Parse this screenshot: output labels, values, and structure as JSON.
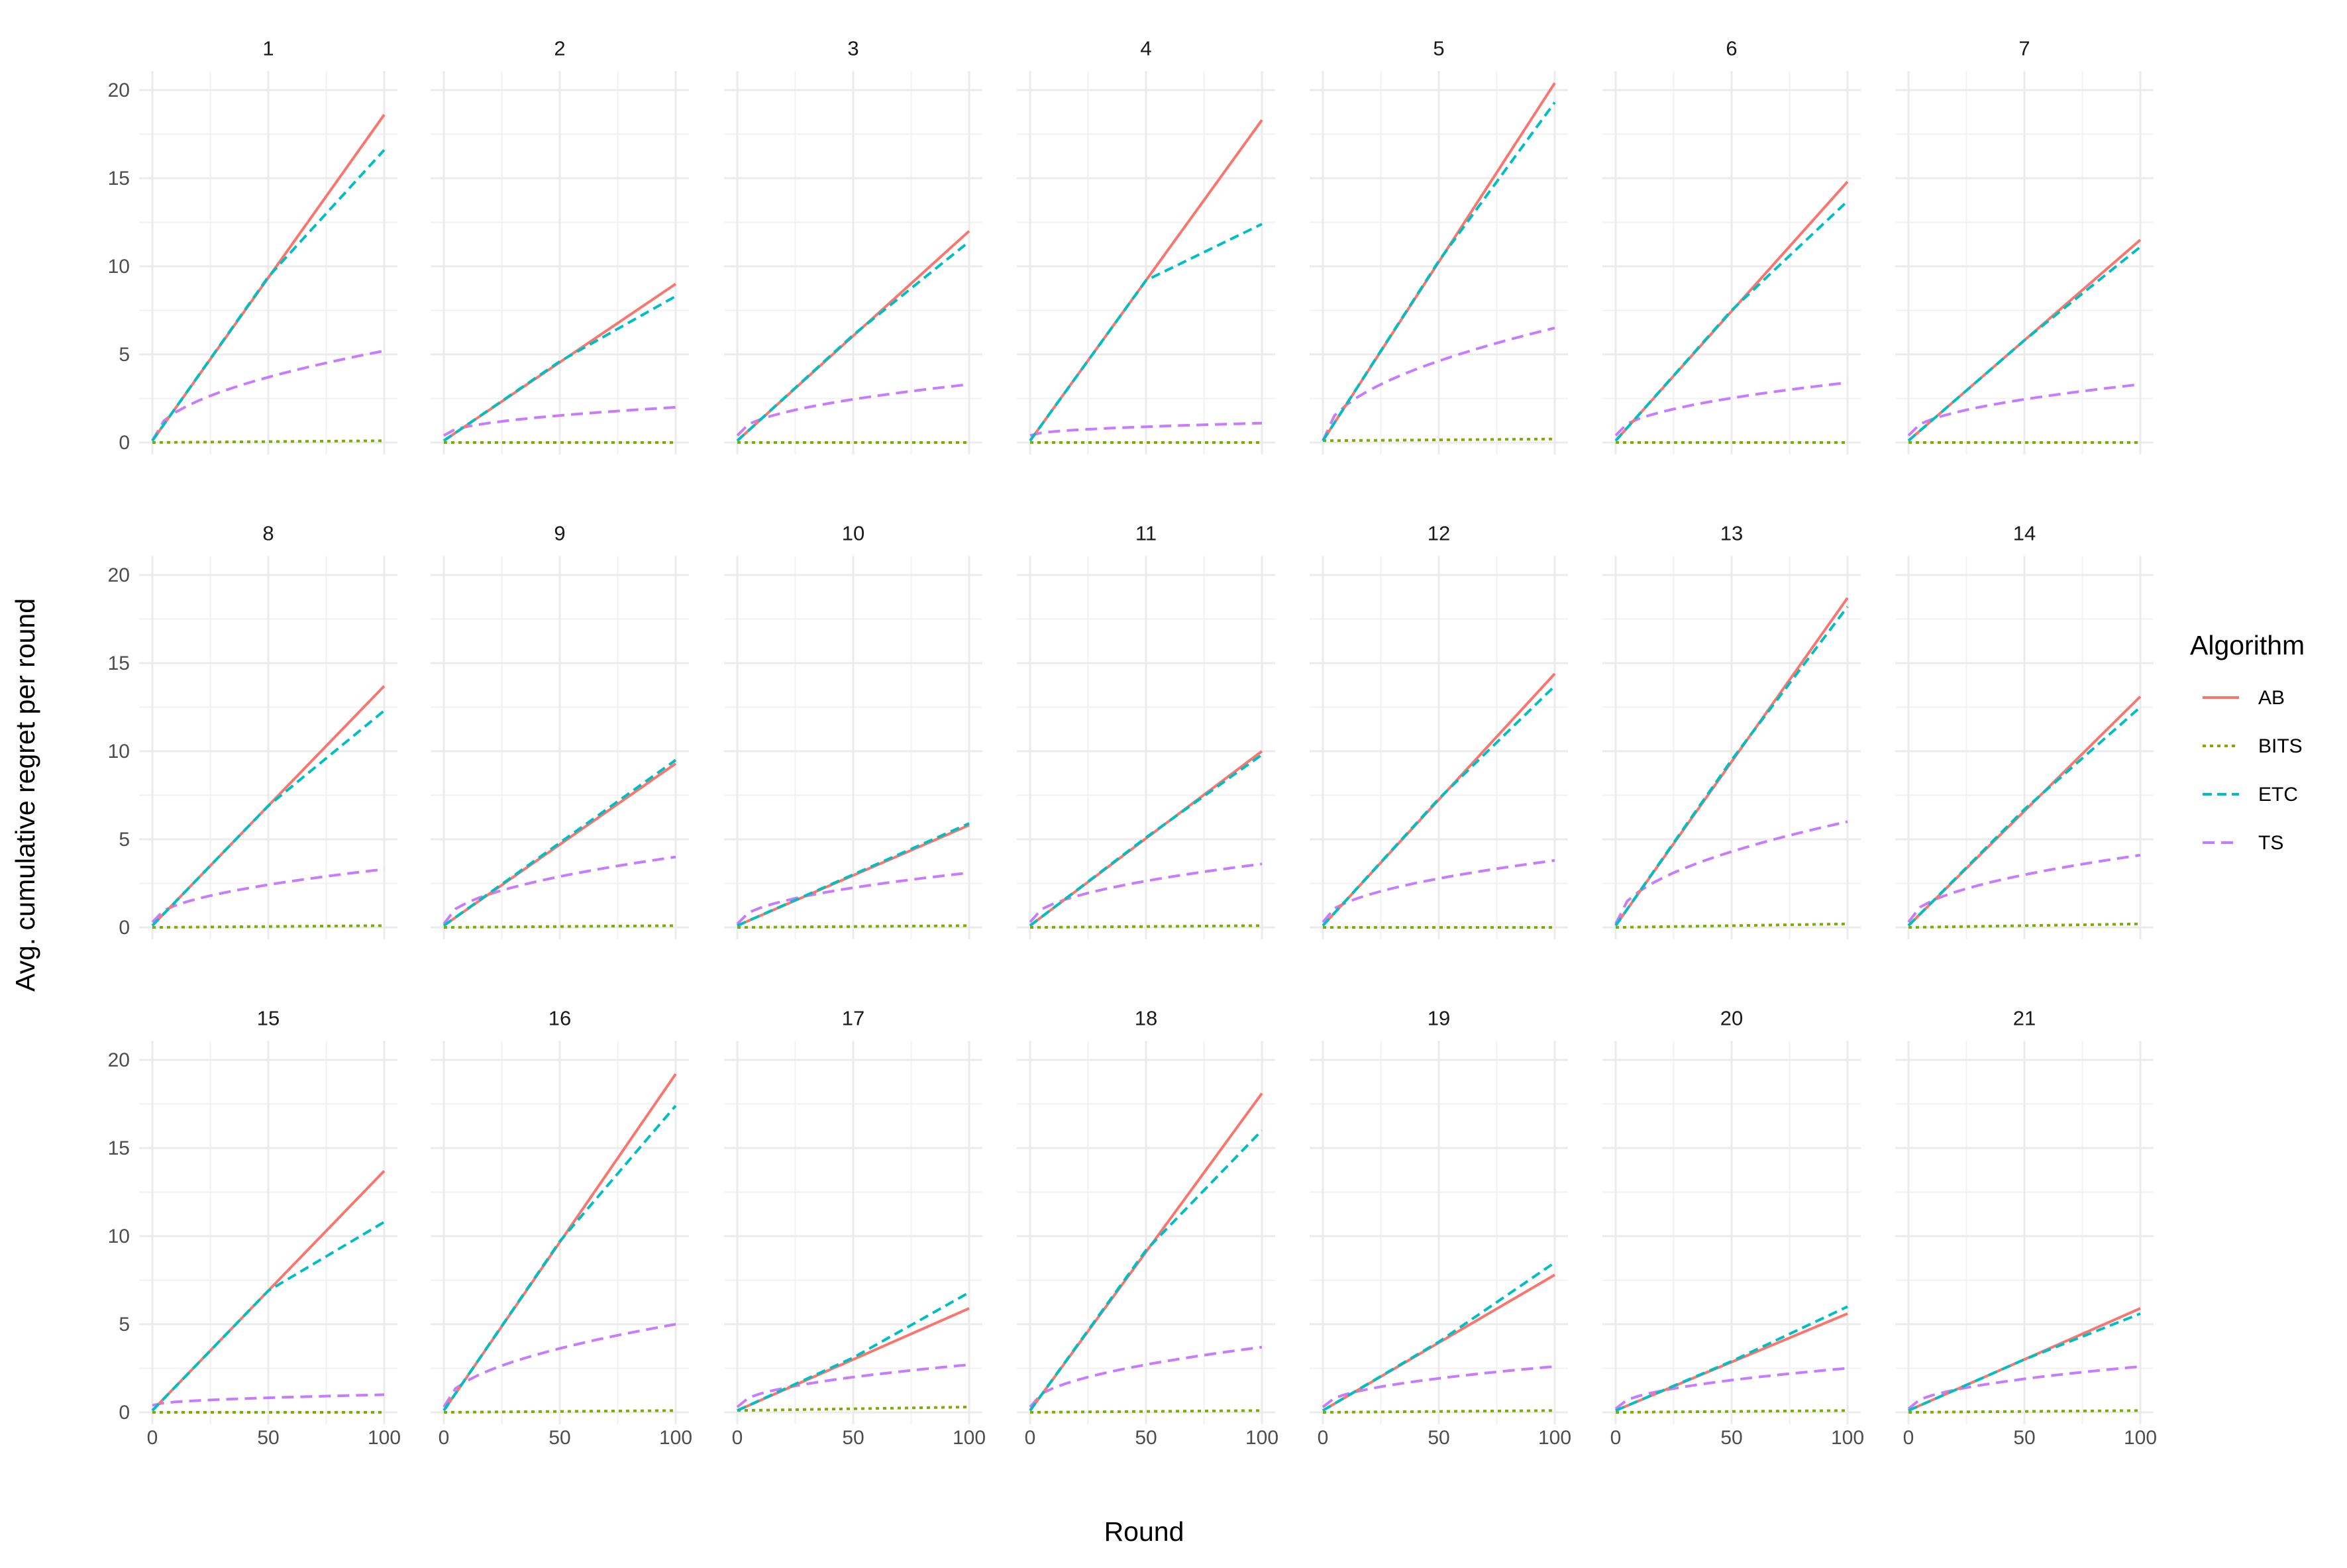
{
  "chart_data": {
    "type": "line",
    "facet_layout": "3 rows x 7 columns",
    "xlabel": "Round",
    "ylabel": "Avg. cumulative regret per round",
    "xlim": [
      0,
      100
    ],
    "ylim": [
      0,
      21
    ],
    "x_ticks": [
      0,
      50,
      100
    ],
    "y_ticks": [
      0,
      5,
      10,
      15,
      20
    ],
    "grid": true,
    "legend": {
      "title": "Algorithm",
      "placement": "right",
      "entries": [
        {
          "name": "AB",
          "color": "#F8766D",
          "dash": "solid"
        },
        {
          "name": "BITS",
          "color": "#7CAE00",
          "dash": "dotted"
        },
        {
          "name": "ETC",
          "color": "#00BFC4",
          "dash": "dashed"
        },
        {
          "name": "TS",
          "color": "#C77CFF",
          "dash": "longdash"
        }
      ]
    },
    "panel_series_note": "each panel: AB [y at x=0, x=100], BITS [x=0, x=100], ETC [x=0, x=50 switch, x=100], TS [x=0, x=100] on sqrt-like curve",
    "panels": [
      {
        "label": "1",
        "AB": [
          0.1,
          18.6
        ],
        "BITS": [
          0.0,
          0.1
        ],
        "ETC": [
          0.1,
          9.4,
          16.6
        ],
        "TS": [
          0.1,
          5.2
        ]
      },
      {
        "label": "2",
        "AB": [
          0.1,
          9.0
        ],
        "BITS": [
          0.0,
          0.0
        ],
        "ETC": [
          0.1,
          4.6,
          8.3
        ],
        "TS": [
          0.4,
          2.0
        ]
      },
      {
        "label": "3",
        "AB": [
          0.1,
          12.0
        ],
        "BITS": [
          0.0,
          0.0
        ],
        "ETC": [
          0.1,
          6.1,
          11.4
        ],
        "TS": [
          0.4,
          3.3
        ]
      },
      {
        "label": "4",
        "AB": [
          0.1,
          18.3
        ],
        "BITS": [
          0.0,
          0.0
        ],
        "ETC": [
          0.1,
          9.2,
          12.4
        ],
        "TS": [
          0.4,
          1.1
        ]
      },
      {
        "label": "5",
        "AB": [
          0.1,
          20.4
        ],
        "BITS": [
          0.1,
          0.2
        ],
        "ETC": [
          0.1,
          10.3,
          19.3
        ],
        "TS": [
          0.1,
          6.5
        ]
      },
      {
        "label": "6",
        "AB": [
          0.1,
          14.8
        ],
        "BITS": [
          0.0,
          0.0
        ],
        "ETC": [
          0.1,
          7.5,
          13.7
        ],
        "TS": [
          0.4,
          3.4
        ]
      },
      {
        "label": "7",
        "AB": [
          0.1,
          11.5
        ],
        "BITS": [
          0.0,
          0.0
        ],
        "ETC": [
          0.1,
          5.8,
          11.1
        ],
        "TS": [
          0.4,
          3.3
        ]
      },
      {
        "label": "8",
        "AB": [
          0.1,
          13.7
        ],
        "BITS": [
          0.0,
          0.1
        ],
        "ETC": [
          0.1,
          6.9,
          12.3
        ],
        "TS": [
          0.3,
          3.3
        ]
      },
      {
        "label": "9",
        "AB": [
          0.1,
          9.3
        ],
        "BITS": [
          0.0,
          0.1
        ],
        "ETC": [
          0.1,
          4.8,
          9.5
        ],
        "TS": [
          0.2,
          4.0
        ]
      },
      {
        "label": "10",
        "AB": [
          0.1,
          5.8
        ],
        "BITS": [
          0.0,
          0.1
        ],
        "ETC": [
          0.1,
          3.0,
          5.9
        ],
        "TS": [
          0.2,
          3.1
        ]
      },
      {
        "label": "11",
        "AB": [
          0.1,
          10.0
        ],
        "BITS": [
          0.0,
          0.1
        ],
        "ETC": [
          0.1,
          5.1,
          9.8
        ],
        "TS": [
          0.3,
          3.6
        ]
      },
      {
        "label": "12",
        "AB": [
          0.1,
          14.4
        ],
        "BITS": [
          0.0,
          0.0
        ],
        "ETC": [
          0.1,
          7.3,
          13.7
        ],
        "TS": [
          0.3,
          3.8
        ]
      },
      {
        "label": "13",
        "AB": [
          0.1,
          18.7
        ],
        "BITS": [
          0.0,
          0.2
        ],
        "ETC": [
          0.1,
          9.5,
          18.2
        ],
        "TS": [
          0.2,
          6.0
        ]
      },
      {
        "label": "14",
        "AB": [
          0.1,
          13.1
        ],
        "BITS": [
          0.0,
          0.2
        ],
        "ETC": [
          0.1,
          6.7,
          12.5
        ],
        "TS": [
          0.3,
          4.1
        ]
      },
      {
        "label": "15",
        "AB": [
          0.1,
          13.7
        ],
        "BITS": [
          0.0,
          0.0
        ],
        "ETC": [
          0.1,
          6.9,
          10.8
        ],
        "TS": [
          0.4,
          1.0
        ]
      },
      {
        "label": "16",
        "AB": [
          0.1,
          19.2
        ],
        "BITS": [
          0.0,
          0.1
        ],
        "ETC": [
          0.1,
          9.7,
          17.4
        ],
        "TS": [
          0.3,
          5.0
        ]
      },
      {
        "label": "17",
        "AB": [
          0.1,
          5.9
        ],
        "BITS": [
          0.1,
          0.3
        ],
        "ETC": [
          0.1,
          3.1,
          6.8
        ],
        "TS": [
          0.3,
          2.7
        ]
      },
      {
        "label": "18",
        "AB": [
          0.1,
          18.1
        ],
        "BITS": [
          0.0,
          0.1
        ],
        "ETC": [
          0.1,
          9.2,
          16.0
        ],
        "TS": [
          0.3,
          3.7
        ]
      },
      {
        "label": "19",
        "AB": [
          0.1,
          7.8
        ],
        "BITS": [
          0.0,
          0.1
        ],
        "ETC": [
          0.1,
          4.0,
          8.5
        ],
        "TS": [
          0.3,
          2.6
        ]
      },
      {
        "label": "20",
        "AB": [
          0.1,
          5.6
        ],
        "BITS": [
          0.0,
          0.1
        ],
        "ETC": [
          0.1,
          2.9,
          6.0
        ],
        "TS": [
          0.2,
          2.5
        ]
      },
      {
        "label": "21",
        "AB": [
          0.1,
          5.9
        ],
        "BITS": [
          0.0,
          0.1
        ],
        "ETC": [
          0.1,
          3.0,
          5.6
        ],
        "TS": [
          0.2,
          2.6
        ]
      }
    ]
  }
}
